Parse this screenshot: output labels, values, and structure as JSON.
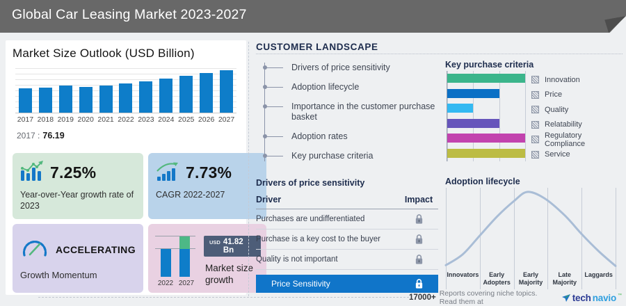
{
  "header": {
    "title": "Global Car Leasing Market 2023-2027"
  },
  "left_panel": {
    "stats": [
      {
        "icon": "bar-chart-trend-icon",
        "value": "7.25%",
        "label": "Year-over-Year growth rate of 2023"
      },
      {
        "icon": "growth-bars-icon",
        "value": "7.73%",
        "label": "CAGR 2022-2027"
      },
      {
        "icon": "speedometer-icon",
        "value": "ACCELERATING",
        "label": "Growth Momentum"
      },
      {
        "icon": "mini-bar-chart",
        "badge_unit": "USD",
        "badge_value": "41.82 Bn",
        "label": "Market size growth",
        "years": [
          "2022",
          "2027"
        ],
        "values": [
          92.71,
          134.53
        ],
        "growth_color": "#4db886",
        "bar_color": "#0e7dc9"
      }
    ]
  },
  "customer_landscape": {
    "title": "CUSTOMER  LANDSCAPE",
    "items": [
      "Drivers of price sensitivity",
      "Adoption lifecycle",
      "Importance in the customer purchase basket",
      "Adoption rates",
      "Key purchase criteria"
    ]
  },
  "drivers_table": {
    "title": "Drivers of price sensitivity",
    "col_driver": "Driver",
    "col_impact": "Impact",
    "rows": [
      "Purchases are undifferentiated",
      "Purchase is a key cost to the buyer",
      "Quality is not important"
    ],
    "highlight_row": "Price Sensitivity",
    "lock_color": "#8d96a8",
    "highlight_color": "#1075c9"
  },
  "footer": {
    "count": "17000+",
    "text": "Reports covering niche topics. Read them at",
    "brand_tech": "tech",
    "brand_navio": "navio",
    "brand_tm": "™"
  },
  "chart_data": [
    {
      "type": "bar",
      "title": "Market Size Outlook (USD Billion)",
      "categories": [
        "2017",
        "2018",
        "2019",
        "2020",
        "2021",
        "2022",
        "2023",
        "2024",
        "2025",
        "2026",
        "2027"
      ],
      "values": [
        76.19,
        79.8,
        84.6,
        80.0,
        84.7,
        92.71,
        99.43,
        106.9,
        115.4,
        124.6,
        134.53
      ],
      "ylim": [
        0,
        140
      ],
      "bar_color": "#0e7dc9",
      "grid": true,
      "callout_label": "2017 :",
      "callout_value": "76.19"
    },
    {
      "type": "bar",
      "orientation": "horizontal",
      "title": "Key purchase criteria",
      "categories": [
        "Innovation",
        "Price",
        "Quality",
        "Relatability",
        "Regulatory Compliance",
        "Service"
      ],
      "values": [
        3,
        2,
        1,
        2,
        3,
        3
      ],
      "xlim": [
        0,
        3
      ],
      "colors": [
        "#3bb58b",
        "#0b70c5",
        "#33b9f2",
        "#6655bb",
        "#c243ae",
        "#bcbc44"
      ],
      "legend_position": "right",
      "grid": true
    },
    {
      "type": "line",
      "title": "Adoption lifecycle",
      "categories": [
        "Innovators",
        "Early Adopters",
        "Early Majority",
        "Late Majority",
        "Laggards"
      ],
      "x_pct": [
        0,
        10,
        20,
        30,
        40,
        48,
        58,
        70,
        80,
        90,
        100
      ],
      "y_pct": [
        6,
        20,
        44,
        68,
        88,
        100,
        92,
        70,
        46,
        24,
        5
      ],
      "line_color": "#a9bdd6",
      "grid": true
    }
  ]
}
